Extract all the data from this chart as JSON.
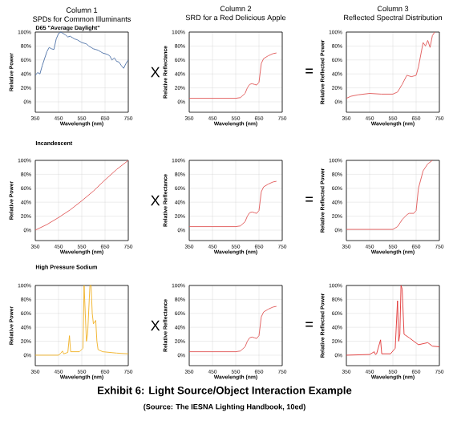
{
  "chart_data": [
    {
      "type": "line",
      "title": "Column 1",
      "subtitle": "SPDs for Common Illuminants",
      "annotations": [
        "D65 \"Average Daylight\"",
        "X"
      ],
      "xlabel": "Wavelength (nm)",
      "ylabel": "Relative Power",
      "color": "#4a6fa5",
      "xlim": [
        350,
        750
      ],
      "ylim": [
        -15,
        100
      ],
      "xticks": [
        350,
        450,
        550,
        650,
        750
      ],
      "yticks": [
        {
          "value": 0,
          "label": "0%"
        },
        {
          "value": 20,
          "label": "20%"
        },
        {
          "value": 40,
          "label": "40%"
        },
        {
          "value": 60,
          "label": "60%"
        },
        {
          "value": 80,
          "label": "80%"
        },
        {
          "value": 100,
          "label": "100%"
        }
      ],
      "grid": true,
      "x": [
        350,
        360,
        370,
        380,
        390,
        400,
        410,
        420,
        430,
        440,
        450,
        460,
        470,
        480,
        490,
        500,
        510,
        520,
        530,
        540,
        550,
        560,
        570,
        580,
        590,
        600,
        610,
        620,
        630,
        640,
        650,
        660,
        670,
        680,
        690,
        700,
        710,
        720,
        730,
        740,
        750
      ],
      "values": [
        38,
        42,
        40,
        52,
        62,
        72,
        78,
        76,
        75,
        90,
        98,
        100,
        98,
        96,
        93,
        94,
        92,
        90,
        89,
        87,
        85,
        84,
        83,
        80,
        78,
        76,
        75,
        74,
        72,
        70,
        69,
        68,
        66,
        60,
        63,
        58,
        57,
        52,
        48,
        55,
        60
      ]
    },
    {
      "type": "line",
      "title": "Column 2",
      "subtitle": "SRD for a Red Delicious Apple",
      "annotations": [
        "="
      ],
      "xlabel": "Wavelength (nm)",
      "ylabel": "Relative Reflectance",
      "color": "#e05555",
      "xlim": [
        350,
        750
      ],
      "ylim": [
        -15,
        100
      ],
      "xticks": [
        350,
        450,
        550,
        650,
        750
      ],
      "yticks": [
        {
          "value": 0,
          "label": "0%"
        },
        {
          "value": 20,
          "label": "20%"
        },
        {
          "value": 40,
          "label": "40%"
        },
        {
          "value": 60,
          "label": "60%"
        },
        {
          "value": 80,
          "label": "80%"
        },
        {
          "value": 100,
          "label": "100%"
        }
      ],
      "grid": true,
      "x": [
        350,
        400,
        450,
        500,
        550,
        570,
        590,
        600,
        610,
        620,
        630,
        640,
        650,
        660,
        670,
        690,
        710,
        725
      ],
      "values": [
        5,
        5,
        5,
        5,
        5,
        6,
        12,
        20,
        25,
        26,
        25,
        24,
        28,
        55,
        62,
        66,
        69,
        70
      ]
    },
    {
      "type": "line",
      "title": "Column 3",
      "subtitle": "Reflected Spectral Distribution",
      "xlabel": "Wavelength (nm)",
      "ylabel": "Relative Reflected Power",
      "color": "#e05555",
      "xlim": [
        350,
        750
      ],
      "ylim": [
        -15,
        100
      ],
      "xticks": [
        350,
        450,
        550,
        650,
        750
      ],
      "yticks": [
        {
          "value": 0,
          "label": "0%"
        },
        {
          "value": 20,
          "label": "20%"
        },
        {
          "value": 40,
          "label": "40%"
        },
        {
          "value": 60,
          "label": "60%"
        },
        {
          "value": 80,
          "label": "80%"
        },
        {
          "value": 100,
          "label": "100%"
        }
      ],
      "grid": true,
      "x": [
        350,
        370,
        400,
        450,
        500,
        550,
        570,
        590,
        610,
        630,
        650,
        660,
        680,
        690,
        700,
        710,
        720,
        730
      ],
      "values": [
        5,
        8,
        10,
        12,
        11,
        11,
        14,
        25,
        38,
        36,
        38,
        50,
        85,
        80,
        88,
        78,
        95,
        100
      ]
    },
    {
      "type": "line",
      "title": "Incandescent",
      "annotations": [
        "X"
      ],
      "xlabel": "Wavelength (nm)",
      "ylabel": "Relative Power",
      "color": "#e05555",
      "xlim": [
        350,
        750
      ],
      "ylim": [
        -15,
        100
      ],
      "xticks": [
        350,
        450,
        550,
        650,
        750
      ],
      "yticks": [
        {
          "value": 0,
          "label": "0%"
        },
        {
          "value": 20,
          "label": "20%"
        },
        {
          "value": 40,
          "label": "40%"
        },
        {
          "value": 60,
          "label": "60%"
        },
        {
          "value": 80,
          "label": "80%"
        },
        {
          "value": 100,
          "label": "100%"
        }
      ],
      "grid": true,
      "x": [
        350,
        400,
        450,
        500,
        550,
        600,
        650,
        700,
        750
      ],
      "values": [
        0,
        8,
        18,
        29,
        42,
        56,
        72,
        87,
        100
      ]
    },
    {
      "type": "line",
      "annotations": [
        "="
      ],
      "xlabel": "Wavelength (nm)",
      "ylabel": "Relative Reflectance",
      "color": "#e05555",
      "xlim": [
        350,
        750
      ],
      "ylim": [
        -15,
        100
      ],
      "xticks": [
        350,
        450,
        550,
        650,
        750
      ],
      "yticks": [
        {
          "value": 0,
          "label": "0%"
        },
        {
          "value": 20,
          "label": "20%"
        },
        {
          "value": 40,
          "label": "40%"
        },
        {
          "value": 60,
          "label": "60%"
        },
        {
          "value": 80,
          "label": "80%"
        },
        {
          "value": 100,
          "label": "100%"
        }
      ],
      "grid": true,
      "x": [
        350,
        400,
        450,
        500,
        550,
        570,
        590,
        600,
        610,
        620,
        630,
        640,
        650,
        660,
        670,
        690,
        710,
        725
      ],
      "values": [
        5,
        5,
        5,
        5,
        5,
        6,
        12,
        20,
        25,
        26,
        25,
        24,
        28,
        55,
        62,
        66,
        69,
        70
      ]
    },
    {
      "type": "line",
      "xlabel": "Wavelength (nm)",
      "ylabel": "Relative Reflected Power",
      "color": "#e05555",
      "xlim": [
        350,
        750
      ],
      "ylim": [
        -15,
        100
      ],
      "xticks": [
        350,
        450,
        550,
        650,
        750
      ],
      "yticks": [
        {
          "value": 0,
          "label": "0%"
        },
        {
          "value": 20,
          "label": "20%"
        },
        {
          "value": 40,
          "label": "40%"
        },
        {
          "value": 60,
          "label": "60%"
        },
        {
          "value": 80,
          "label": "80%"
        },
        {
          "value": 100,
          "label": "100%"
        }
      ],
      "grid": true,
      "x": [
        350,
        400,
        450,
        500,
        550,
        570,
        590,
        610,
        620,
        640,
        650,
        660,
        680,
        700,
        720
      ],
      "values": [
        1,
        1,
        1,
        1,
        1,
        5,
        15,
        22,
        24,
        24,
        28,
        60,
        85,
        95,
        100
      ]
    },
    {
      "type": "line",
      "title": "High Pressure Sodium",
      "annotations": [
        "X"
      ],
      "xlabel": "Wavelength (nm)",
      "ylabel": "Relative Power",
      "color": "#f0b020",
      "xlim": [
        350,
        750
      ],
      "ylim": [
        -15,
        100
      ],
      "xticks": [
        350,
        450,
        550,
        650,
        750
      ],
      "yticks": [
        {
          "value": 0,
          "label": "0%"
        },
        {
          "value": 20,
          "label": "20%"
        },
        {
          "value": 40,
          "label": "40%"
        },
        {
          "value": 60,
          "label": "60%"
        },
        {
          "value": 80,
          "label": "80%"
        },
        {
          "value": 100,
          "label": "100%"
        }
      ],
      "grid": true,
      "x": [
        350,
        450,
        460,
        467,
        472,
        490,
        497,
        502,
        540,
        555,
        560,
        565,
        570,
        575,
        585,
        590,
        595,
        600,
        610,
        615,
        620,
        640,
        700,
        750
      ],
      "values": [
        0,
        0,
        3,
        6,
        2,
        4,
        28,
        5,
        5,
        10,
        100,
        60,
        20,
        30,
        100,
        100,
        60,
        45,
        50,
        20,
        8,
        5,
        3,
        2
      ]
    },
    {
      "type": "line",
      "annotations": [
        "="
      ],
      "xlabel": "Wavelength (nm)",
      "ylabel": "Relative Reflectance",
      "color": "#e05555",
      "xlim": [
        350,
        750
      ],
      "ylim": [
        -15,
        100
      ],
      "xticks": [
        350,
        450,
        550,
        650,
        750
      ],
      "yticks": [
        {
          "value": 0,
          "label": "0%"
        },
        {
          "value": 20,
          "label": "20%"
        },
        {
          "value": 40,
          "label": "40%"
        },
        {
          "value": 60,
          "label": "60%"
        },
        {
          "value": 80,
          "label": "80%"
        },
        {
          "value": 100,
          "label": "100%"
        }
      ],
      "grid": true,
      "x": [
        350,
        400,
        450,
        500,
        550,
        570,
        590,
        600,
        610,
        620,
        630,
        640,
        650,
        660,
        670,
        690,
        710,
        725
      ],
      "values": [
        5,
        5,
        5,
        5,
        5,
        6,
        12,
        20,
        25,
        26,
        25,
        24,
        28,
        55,
        62,
        66,
        69,
        70
      ]
    },
    {
      "type": "line",
      "annotations": [
        "Exhibit 6: Light Source/Object Interaction Example",
        "(Source: The IESNA Lighting Handbook, 10ed)"
      ],
      "xlabel": "Wavelength (nm)",
      "ylabel": "Relative Reflected Power",
      "color": "#e03030",
      "xlim": [
        350,
        750
      ],
      "ylim": [
        -15,
        100
      ],
      "xticks": [
        350,
        450,
        550,
        650,
        750
      ],
      "yticks": [
        {
          "value": 0,
          "label": "0%"
        },
        {
          "value": 20,
          "label": "20%"
        },
        {
          "value": 40,
          "label": "40%"
        },
        {
          "value": 60,
          "label": "60%"
        },
        {
          "value": 80,
          "label": "80%"
        },
        {
          "value": 100,
          "label": "100%"
        }
      ],
      "grid": true,
      "x": [
        350,
        450,
        470,
        475,
        480,
        497,
        502,
        540,
        560,
        570,
        575,
        580,
        585,
        590,
        598,
        620,
        660,
        700,
        720,
        750
      ],
      "values": [
        0,
        1,
        5,
        1,
        2,
        22,
        2,
        2,
        10,
        78,
        20,
        30,
        100,
        95,
        30,
        25,
        15,
        18,
        13,
        12
      ]
    }
  ]
}
